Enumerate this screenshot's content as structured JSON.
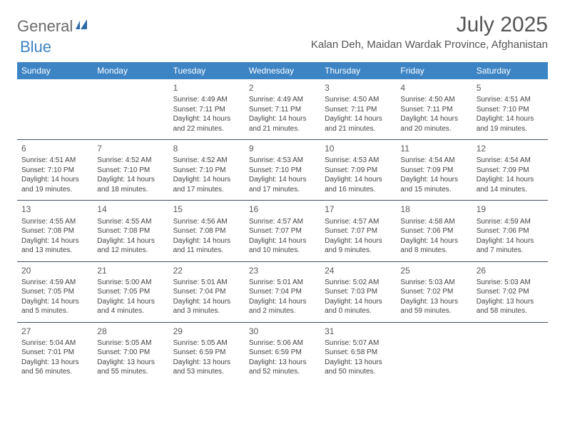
{
  "brand": {
    "part1": "General",
    "part2": "Blue"
  },
  "title": "July 2025",
  "location": "Kalan Deh, Maidan Wardak Province, Afghanistan",
  "colors": {
    "header_bg": "#3d84c4",
    "header_text": "#ffffff",
    "body_text": "#444444",
    "separator": "#434f63",
    "brand_gray": "#6b6b6b",
    "brand_blue": "#3d84c4",
    "title_color": "#555555",
    "background": "#ffffff"
  },
  "dayNames": [
    "Sunday",
    "Monday",
    "Tuesday",
    "Wednesday",
    "Thursday",
    "Friday",
    "Saturday"
  ],
  "weeks": [
    [
      null,
      null,
      {
        "n": "1",
        "sr": "4:49 AM",
        "ss": "7:11 PM",
        "dl": "14 hours and 22 minutes."
      },
      {
        "n": "2",
        "sr": "4:49 AM",
        "ss": "7:11 PM",
        "dl": "14 hours and 21 minutes."
      },
      {
        "n": "3",
        "sr": "4:50 AM",
        "ss": "7:11 PM",
        "dl": "14 hours and 21 minutes."
      },
      {
        "n": "4",
        "sr": "4:50 AM",
        "ss": "7:11 PM",
        "dl": "14 hours and 20 minutes."
      },
      {
        "n": "5",
        "sr": "4:51 AM",
        "ss": "7:10 PM",
        "dl": "14 hours and 19 minutes."
      }
    ],
    [
      {
        "n": "6",
        "sr": "4:51 AM",
        "ss": "7:10 PM",
        "dl": "14 hours and 19 minutes."
      },
      {
        "n": "7",
        "sr": "4:52 AM",
        "ss": "7:10 PM",
        "dl": "14 hours and 18 minutes."
      },
      {
        "n": "8",
        "sr": "4:52 AM",
        "ss": "7:10 PM",
        "dl": "14 hours and 17 minutes."
      },
      {
        "n": "9",
        "sr": "4:53 AM",
        "ss": "7:10 PM",
        "dl": "14 hours and 17 minutes."
      },
      {
        "n": "10",
        "sr": "4:53 AM",
        "ss": "7:09 PM",
        "dl": "14 hours and 16 minutes."
      },
      {
        "n": "11",
        "sr": "4:54 AM",
        "ss": "7:09 PM",
        "dl": "14 hours and 15 minutes."
      },
      {
        "n": "12",
        "sr": "4:54 AM",
        "ss": "7:09 PM",
        "dl": "14 hours and 14 minutes."
      }
    ],
    [
      {
        "n": "13",
        "sr": "4:55 AM",
        "ss": "7:08 PM",
        "dl": "14 hours and 13 minutes."
      },
      {
        "n": "14",
        "sr": "4:55 AM",
        "ss": "7:08 PM",
        "dl": "14 hours and 12 minutes."
      },
      {
        "n": "15",
        "sr": "4:56 AM",
        "ss": "7:08 PM",
        "dl": "14 hours and 11 minutes."
      },
      {
        "n": "16",
        "sr": "4:57 AM",
        "ss": "7:07 PM",
        "dl": "14 hours and 10 minutes."
      },
      {
        "n": "17",
        "sr": "4:57 AM",
        "ss": "7:07 PM",
        "dl": "14 hours and 9 minutes."
      },
      {
        "n": "18",
        "sr": "4:58 AM",
        "ss": "7:06 PM",
        "dl": "14 hours and 8 minutes."
      },
      {
        "n": "19",
        "sr": "4:59 AM",
        "ss": "7:06 PM",
        "dl": "14 hours and 7 minutes."
      }
    ],
    [
      {
        "n": "20",
        "sr": "4:59 AM",
        "ss": "7:05 PM",
        "dl": "14 hours and 5 minutes."
      },
      {
        "n": "21",
        "sr": "5:00 AM",
        "ss": "7:05 PM",
        "dl": "14 hours and 4 minutes."
      },
      {
        "n": "22",
        "sr": "5:01 AM",
        "ss": "7:04 PM",
        "dl": "14 hours and 3 minutes."
      },
      {
        "n": "23",
        "sr": "5:01 AM",
        "ss": "7:04 PM",
        "dl": "14 hours and 2 minutes."
      },
      {
        "n": "24",
        "sr": "5:02 AM",
        "ss": "7:03 PM",
        "dl": "14 hours and 0 minutes."
      },
      {
        "n": "25",
        "sr": "5:03 AM",
        "ss": "7:02 PM",
        "dl": "13 hours and 59 minutes."
      },
      {
        "n": "26",
        "sr": "5:03 AM",
        "ss": "7:02 PM",
        "dl": "13 hours and 58 minutes."
      }
    ],
    [
      {
        "n": "27",
        "sr": "5:04 AM",
        "ss": "7:01 PM",
        "dl": "13 hours and 56 minutes."
      },
      {
        "n": "28",
        "sr": "5:05 AM",
        "ss": "7:00 PM",
        "dl": "13 hours and 55 minutes."
      },
      {
        "n": "29",
        "sr": "5:05 AM",
        "ss": "6:59 PM",
        "dl": "13 hours and 53 minutes."
      },
      {
        "n": "30",
        "sr": "5:06 AM",
        "ss": "6:59 PM",
        "dl": "13 hours and 52 minutes."
      },
      {
        "n": "31",
        "sr": "5:07 AM",
        "ss": "6:58 PM",
        "dl": "13 hours and 50 minutes."
      },
      null,
      null
    ]
  ],
  "labels": {
    "sunrise": "Sunrise: ",
    "sunset": "Sunset: ",
    "daylight": "Daylight: "
  }
}
